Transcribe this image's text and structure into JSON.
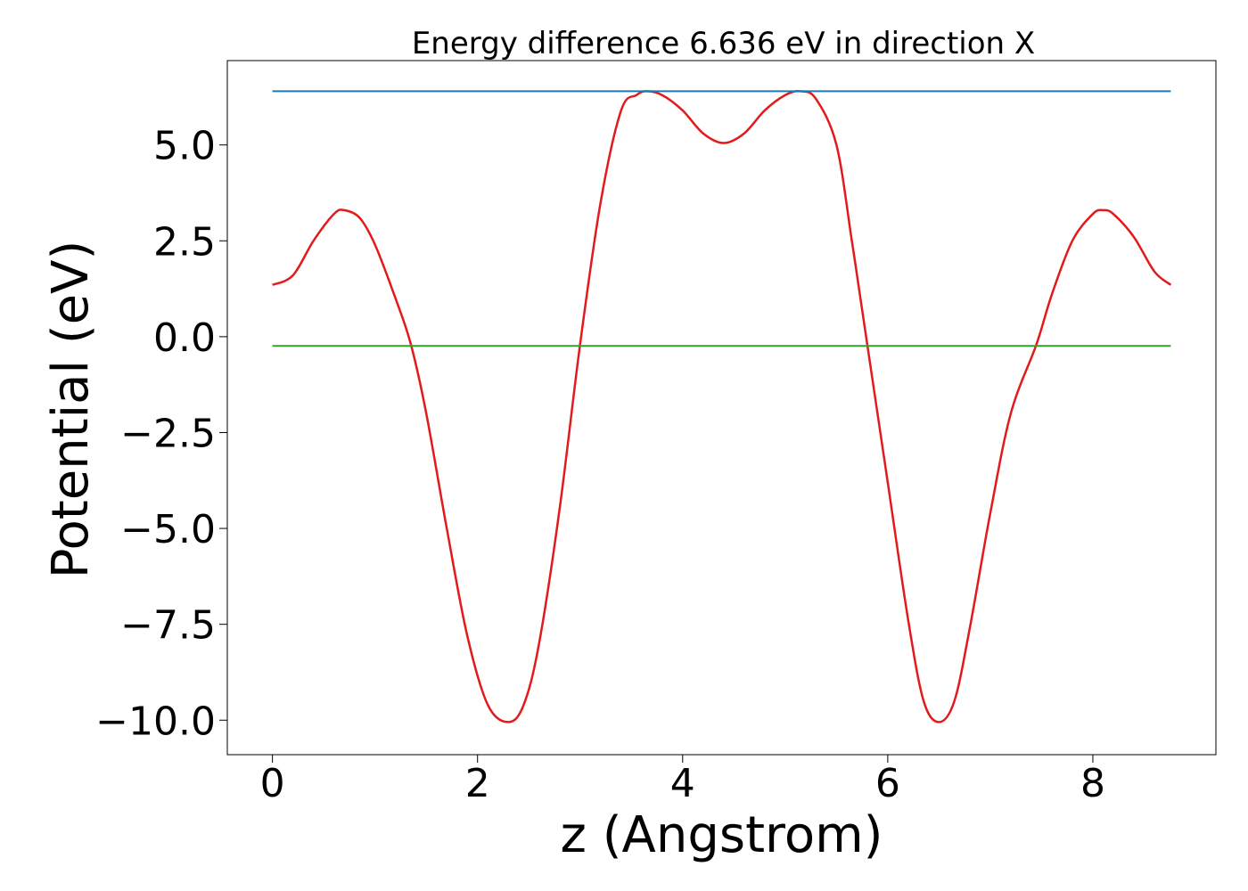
{
  "chart_data": {
    "type": "line",
    "title": "Energy difference 6.636 eV in direction X",
    "xlabel": "z (Angstrom)",
    "ylabel": "Potential (eV)",
    "xlim": [
      -0.44,
      9.2
    ],
    "ylim": [
      -10.9,
      7.2
    ],
    "xticks": [
      0,
      2,
      4,
      6,
      8
    ],
    "yticks": [
      5.0,
      2.5,
      0.0,
      -2.5,
      -5.0,
      -7.5,
      -10.0
    ],
    "xtick_labels": [
      "0",
      "2",
      "4",
      "6",
      "8"
    ],
    "ytick_labels": [
      "5.0",
      "2.5",
      "0.0",
      "−2.5",
      "−5.0",
      "−7.5",
      "−10.0"
    ],
    "grid": false,
    "legend": "none",
    "series": [
      {
        "color": "#e31a1c",
        "x": [
          0.0,
          0.2,
          0.4,
          0.6,
          0.7,
          0.85,
          1.0,
          1.2,
          1.35,
          1.5,
          1.7,
          1.9,
          2.1,
          2.3,
          2.45,
          2.6,
          2.8,
          3.0,
          3.2,
          3.4,
          3.55,
          3.65,
          3.8,
          4.0,
          4.2,
          4.4,
          4.6,
          4.8,
          5.0,
          5.15,
          5.3,
          5.5,
          5.65,
          5.8,
          6.0,
          6.2,
          6.35,
          6.5,
          6.65,
          6.8,
          7.0,
          7.2,
          7.45,
          7.6,
          7.8,
          8.0,
          8.1,
          8.2,
          8.4,
          8.6,
          8.76
        ],
        "y": [
          1.35,
          1.6,
          2.5,
          3.2,
          3.3,
          3.1,
          2.4,
          1.0,
          -0.2,
          -2.0,
          -5.0,
          -7.8,
          -9.6,
          -10.05,
          -9.6,
          -8.0,
          -4.5,
          -0.2,
          3.5,
          5.9,
          6.3,
          6.4,
          6.3,
          5.9,
          5.3,
          5.05,
          5.3,
          5.9,
          6.3,
          6.4,
          6.2,
          5.0,
          2.5,
          -0.2,
          -3.8,
          -7.4,
          -9.5,
          -10.05,
          -9.5,
          -7.6,
          -4.6,
          -2.0,
          -0.2,
          1.1,
          2.5,
          3.2,
          3.3,
          3.2,
          2.6,
          1.7,
          1.35
        ]
      },
      {
        "color": "#1f78b4",
        "x": [
          0.0,
          8.76
        ],
        "y": [
          6.4,
          6.4
        ]
      },
      {
        "color": "#33a02c",
        "x": [
          0.0,
          8.76
        ],
        "y": [
          -0.24,
          -0.24
        ]
      }
    ]
  }
}
